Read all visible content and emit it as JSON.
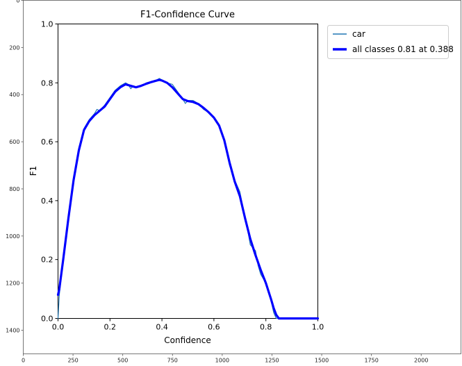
{
  "chart_data": [
    {
      "type": "line",
      "title": "",
      "xlabel": "",
      "ylabel": "",
      "xlim": [
        0,
        2200
      ],
      "ylim": [
        1500,
        0
      ],
      "y_inverted": true,
      "xticks": [
        0,
        250,
        500,
        750,
        1000,
        1250,
        1500,
        1750,
        2000
      ],
      "xtick_labels": [
        "0",
        "250",
        "500",
        "750",
        "1000",
        "1250",
        "1500",
        "1750",
        "2000"
      ],
      "yticks": [
        0,
        200,
        400,
        600,
        800,
        1000,
        1200,
        1400
      ],
      "ytick_labels": [
        "0",
        "200",
        "400",
        "600",
        "800",
        "1000",
        "1200",
        "1400"
      ],
      "grid": false,
      "series": []
    },
    {
      "type": "line",
      "title": "F1-Confidence Curve",
      "xlabel": "Confidence",
      "ylabel": "F1",
      "xlim": [
        0,
        1
      ],
      "ylim": [
        0,
        1
      ],
      "xticks": [
        0.0,
        0.2,
        0.4,
        0.6,
        0.8,
        1.0
      ],
      "xtick_labels": [
        "0.0",
        "0.2",
        "0.4",
        "0.6",
        "0.8",
        "1.0"
      ],
      "yticks": [
        0.0,
        0.2,
        0.4,
        0.6,
        0.8,
        1.0
      ],
      "ytick_labels": [
        "0.0",
        "0.2",
        "0.4",
        "0.6",
        "0.8",
        "1.0"
      ],
      "grid": false,
      "legend": "top-right outside",
      "series": [
        {
          "name": "car",
          "color": "#1f77b4",
          "x": [
            0.0,
            0.005,
            0.02,
            0.04,
            0.06,
            0.08,
            0.1,
            0.12,
            0.14,
            0.15,
            0.16,
            0.18,
            0.2,
            0.22,
            0.24,
            0.26,
            0.27,
            0.28,
            0.29,
            0.3,
            0.32,
            0.34,
            0.36,
            0.38,
            0.39,
            0.4,
            0.42,
            0.44,
            0.46,
            0.48,
            0.49,
            0.5,
            0.52,
            0.54,
            0.56,
            0.58,
            0.6,
            0.62,
            0.64,
            0.66,
            0.68,
            0.7,
            0.72,
            0.73,
            0.74,
            0.76,
            0.77,
            0.78,
            0.8,
            0.82,
            0.83,
            0.84,
            0.85,
            0.86,
            0.9,
            0.95,
            1.0
          ],
          "y": [
            0.0,
            0.08,
            0.2,
            0.34,
            0.48,
            0.58,
            0.645,
            0.675,
            0.695,
            0.71,
            0.705,
            0.725,
            0.75,
            0.775,
            0.79,
            0.8,
            0.795,
            0.78,
            0.79,
            0.785,
            0.79,
            0.8,
            0.805,
            0.81,
            0.815,
            0.81,
            0.8,
            0.795,
            0.77,
            0.745,
            0.73,
            0.74,
            0.74,
            0.73,
            0.71,
            0.7,
            0.68,
            0.655,
            0.6,
            0.52,
            0.47,
            0.43,
            0.34,
            0.3,
            0.25,
            0.23,
            0.18,
            0.15,
            0.12,
            0.06,
            0.02,
            0.0,
            0.0,
            0.0,
            0.0,
            0.0,
            0.0
          ]
        },
        {
          "name": "all classes 0.81 at 0.388",
          "color": "#0000ff",
          "x": [
            0.0,
            0.005,
            0.02,
            0.04,
            0.06,
            0.08,
            0.1,
            0.12,
            0.14,
            0.16,
            0.18,
            0.2,
            0.22,
            0.24,
            0.26,
            0.28,
            0.3,
            0.32,
            0.34,
            0.36,
            0.38,
            0.39,
            0.4,
            0.42,
            0.44,
            0.46,
            0.48,
            0.5,
            0.52,
            0.54,
            0.56,
            0.58,
            0.6,
            0.62,
            0.64,
            0.66,
            0.68,
            0.7,
            0.72,
            0.74,
            0.76,
            0.78,
            0.8,
            0.82,
            0.83,
            0.84,
            0.85,
            0.9,
            0.95,
            1.0
          ],
          "y": [
            0.08,
            0.1,
            0.2,
            0.34,
            0.47,
            0.57,
            0.64,
            0.67,
            0.69,
            0.705,
            0.72,
            0.745,
            0.77,
            0.785,
            0.795,
            0.79,
            0.785,
            0.79,
            0.797,
            0.803,
            0.808,
            0.81,
            0.808,
            0.8,
            0.785,
            0.765,
            0.745,
            0.738,
            0.735,
            0.728,
            0.715,
            0.7,
            0.682,
            0.655,
            0.605,
            0.53,
            0.465,
            0.415,
            0.34,
            0.27,
            0.215,
            0.165,
            0.12,
            0.065,
            0.035,
            0.012,
            0.0,
            0.0,
            0.0,
            0.0
          ]
        }
      ]
    }
  ]
}
